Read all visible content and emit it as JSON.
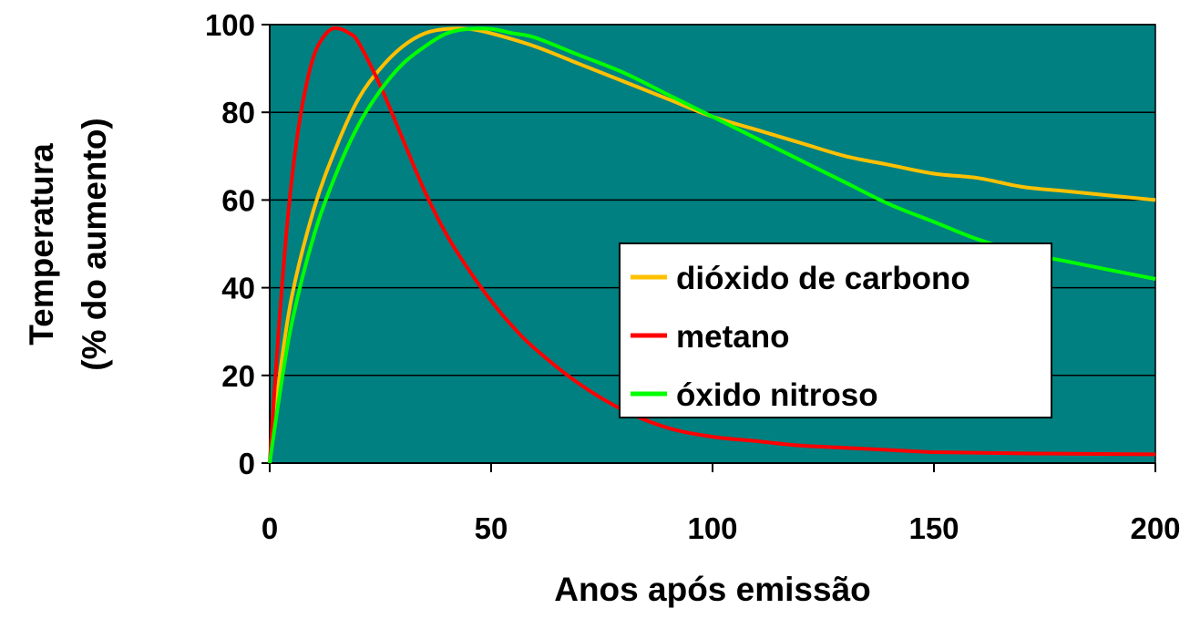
{
  "chart_data": {
    "type": "line",
    "title": "",
    "xlabel": "Anos após emissão",
    "ylabel_lines": [
      "Temperatura",
      "(% do aumento)"
    ],
    "xlim": [
      0,
      200
    ],
    "ylim": [
      0,
      100
    ],
    "x_ticks": [
      0,
      50,
      100,
      150,
      200
    ],
    "y_ticks": [
      0,
      20,
      40,
      60,
      80,
      100
    ],
    "grid": "horizontal",
    "plot_background": "#008080",
    "legend_position": "center-right",
    "series": [
      {
        "name": "dióxido de carbono",
        "color": "#FFC000",
        "x": [
          0,
          2,
          5,
          10,
          15,
          20,
          25,
          30,
          35,
          40,
          45,
          50,
          60,
          70,
          80,
          90,
          100,
          110,
          120,
          130,
          140,
          150,
          160,
          170,
          180,
          190,
          200
        ],
        "y": [
          0,
          18,
          38,
          58,
          72,
          83,
          90,
          95,
          98,
          99,
          99,
          98,
          95,
          91,
          87,
          83,
          79,
          76,
          73,
          70,
          68,
          66,
          65,
          63,
          62,
          61,
          60
        ]
      },
      {
        "name": "metano",
        "color": "#FF0000",
        "x": [
          0,
          2,
          4,
          6,
          8,
          10,
          12,
          14,
          16,
          18,
          20,
          25,
          30,
          35,
          40,
          45,
          50,
          55,
          60,
          70,
          80,
          90,
          100,
          110,
          120,
          130,
          140,
          150,
          170,
          200
        ],
        "y": [
          0,
          30,
          55,
          73,
          85,
          93,
          97,
          99,
          99,
          98,
          96,
          86,
          74,
          62,
          52,
          44,
          37,
          31,
          26,
          18,
          12,
          8,
          6,
          5,
          4,
          3.5,
          3,
          2.5,
          2.2,
          2
        ]
      },
      {
        "name": "óxido nitroso",
        "color": "#00FF00",
        "x": [
          0,
          2,
          5,
          10,
          15,
          20,
          25,
          30,
          35,
          40,
          45,
          50,
          55,
          60,
          70,
          80,
          90,
          100,
          110,
          120,
          130,
          140,
          150,
          160,
          170,
          180,
          190,
          200
        ],
        "y": [
          0,
          14,
          32,
          52,
          66,
          77,
          85,
          91,
          95,
          98,
          99,
          99,
          98,
          97,
          93,
          89,
          84,
          79,
          74,
          69,
          64,
          59,
          55,
          51,
          48,
          46,
          44,
          42
        ]
      }
    ]
  }
}
